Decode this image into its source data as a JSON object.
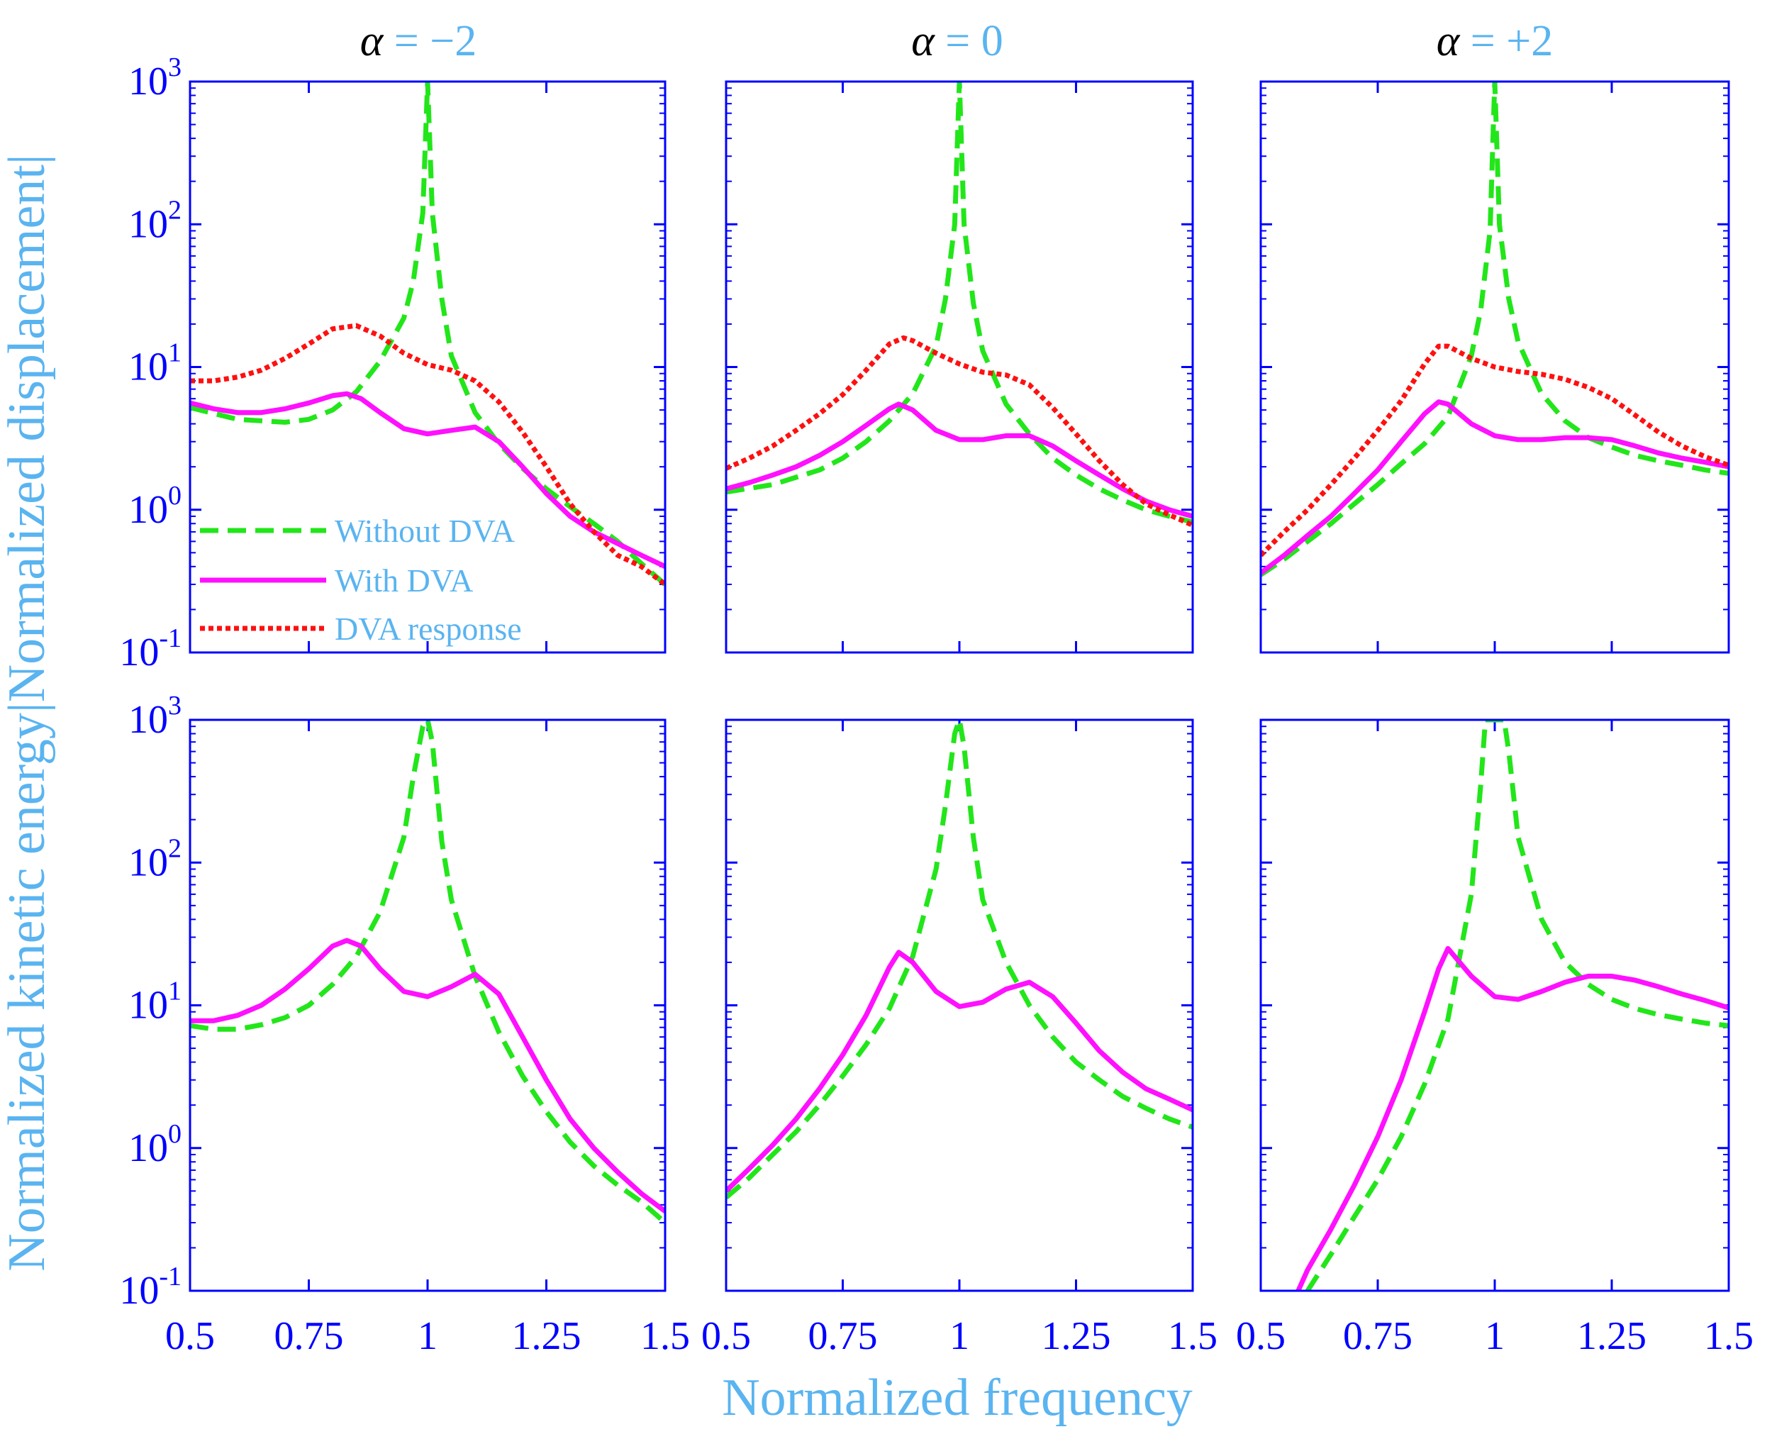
{
  "colors": {
    "axis": "#0000ff",
    "label": "#5ab4f0",
    "title_symbol": "#000000",
    "without_dva": "#22e61a",
    "with_dva": "#ff10ff",
    "dva_response": "#ff1010"
  },
  "figure": {
    "ylabel": "Normalized kinetic energy|Normalized displacement|",
    "xlabel": "Normalized frequency",
    "titles": [
      {
        "symbol": "α",
        "eq": " = −2"
      },
      {
        "symbol": "α",
        "eq": " = 0"
      },
      {
        "symbol": "α",
        "eq": " = +2"
      }
    ],
    "legend": [
      "Without DVA",
      "With DVA",
      "DVA response"
    ],
    "xticks": [
      "0.5",
      "0.75",
      "1",
      "1.25",
      "1.5"
    ],
    "yticks": [
      {
        "base": "10",
        "exp": "-1"
      },
      {
        "base": "10",
        "exp": "0"
      },
      {
        "base": "10",
        "exp": "1"
      },
      {
        "base": "10",
        "exp": "2"
      },
      {
        "base": "10",
        "exp": "3"
      }
    ]
  },
  "chart_data": [
    {
      "type": "line",
      "title": "α = −2",
      "yscale": "log",
      "xlim": [
        0.5,
        1.5
      ],
      "ylim": [
        0.1,
        1000
      ],
      "series": [
        {
          "name": "Without DVA",
          "style": "dashed",
          "x": [
            0.5,
            0.6,
            0.7,
            0.75,
            0.8,
            0.85,
            0.9,
            0.95,
            0.97,
            0.99,
            1.0,
            1.01,
            1.03,
            1.05,
            1.1,
            1.15,
            1.2,
            1.25,
            1.3,
            1.35,
            1.4,
            1.45,
            1.5
          ],
          "y": [
            5.2,
            4.3,
            4.1,
            4.3,
            5.0,
            6.7,
            11,
            22,
            40,
            120,
            1000,
            120,
            30,
            12,
            4.8,
            2.9,
            1.95,
            1.4,
            1.05,
            0.8,
            0.6,
            0.42,
            0.3
          ]
        },
        {
          "name": "With DVA",
          "style": "solid",
          "x": [
            0.5,
            0.55,
            0.6,
            0.65,
            0.7,
            0.75,
            0.8,
            0.83,
            0.86,
            0.9,
            0.95,
            1.0,
            1.05,
            1.1,
            1.15,
            1.2,
            1.25,
            1.3,
            1.35,
            1.4,
            1.45,
            1.5
          ],
          "y": [
            5.6,
            5.1,
            4.8,
            4.8,
            5.1,
            5.6,
            6.3,
            6.5,
            6.0,
            4.8,
            3.7,
            3.4,
            3.6,
            3.8,
            3.0,
            2.0,
            1.3,
            0.9,
            0.7,
            0.58,
            0.48,
            0.4
          ]
        },
        {
          "name": "DVA response",
          "style": "dotted",
          "x": [
            0.5,
            0.55,
            0.6,
            0.65,
            0.7,
            0.75,
            0.8,
            0.85,
            0.9,
            0.95,
            1.0,
            1.05,
            1.1,
            1.15,
            1.2,
            1.25,
            1.3,
            1.35,
            1.4,
            1.45,
            1.5
          ],
          "y": [
            8.0,
            8.0,
            8.5,
            9.5,
            11.5,
            14.5,
            18.5,
            19.5,
            16.5,
            12.5,
            10.4,
            9.5,
            8.0,
            5.7,
            3.5,
            2.0,
            1.1,
            0.7,
            0.48,
            0.4,
            0.3
          ]
        }
      ]
    },
    {
      "type": "line",
      "title": "α = 0",
      "yscale": "log",
      "xlim": [
        0.5,
        1.5
      ],
      "ylim": [
        0.1,
        1000
      ],
      "series": [
        {
          "name": "Without DVA",
          "style": "dashed",
          "x": [
            0.5,
            0.6,
            0.7,
            0.75,
            0.8,
            0.85,
            0.9,
            0.95,
            0.97,
            0.99,
            1.0,
            1.01,
            1.03,
            1.05,
            1.1,
            1.15,
            1.2,
            1.25,
            1.3,
            1.35,
            1.4,
            1.45,
            1.5
          ],
          "y": [
            1.33,
            1.5,
            1.9,
            2.3,
            3.0,
            4.2,
            6.5,
            14,
            30,
            100,
            1000,
            100,
            28,
            13,
            5.5,
            3.4,
            2.3,
            1.75,
            1.4,
            1.17,
            1.0,
            0.9,
            0.82
          ]
        },
        {
          "name": "With DVA",
          "style": "solid",
          "x": [
            0.5,
            0.55,
            0.6,
            0.65,
            0.7,
            0.75,
            0.8,
            0.85,
            0.87,
            0.9,
            0.95,
            1.0,
            1.05,
            1.1,
            1.15,
            1.2,
            1.25,
            1.3,
            1.35,
            1.4,
            1.45,
            1.5
          ],
          "y": [
            1.4,
            1.55,
            1.75,
            2.0,
            2.4,
            3.0,
            3.9,
            5.1,
            5.5,
            5.0,
            3.6,
            3.1,
            3.1,
            3.3,
            3.3,
            2.8,
            2.2,
            1.75,
            1.4,
            1.15,
            1.0,
            0.9
          ]
        },
        {
          "name": "DVA response",
          "style": "dotted",
          "x": [
            0.5,
            0.55,
            0.6,
            0.65,
            0.7,
            0.75,
            0.8,
            0.85,
            0.88,
            0.9,
            0.95,
            1.0,
            1.05,
            1.1,
            1.15,
            1.2,
            1.25,
            1.3,
            1.35,
            1.4,
            1.45,
            1.5
          ],
          "y": [
            1.95,
            2.3,
            2.8,
            3.6,
            4.7,
            6.4,
            9.5,
            14.5,
            16.0,
            15.3,
            12.5,
            10.5,
            9.2,
            8.8,
            7.5,
            5.2,
            3.4,
            2.2,
            1.5,
            1.1,
            0.92,
            0.78
          ]
        }
      ]
    },
    {
      "type": "line",
      "title": "α = +2",
      "yscale": "log",
      "xlim": [
        0.5,
        1.5
      ],
      "ylim": [
        0.1,
        1000
      ],
      "series": [
        {
          "name": "Without DVA",
          "style": "dashed",
          "x": [
            0.5,
            0.55,
            0.6,
            0.65,
            0.7,
            0.75,
            0.8,
            0.85,
            0.9,
            0.95,
            0.97,
            0.99,
            1.0,
            1.01,
            1.03,
            1.05,
            1.1,
            1.15,
            1.2,
            1.25,
            1.3,
            1.35,
            1.4,
            1.45,
            1.5
          ],
          "y": [
            0.35,
            0.45,
            0.6,
            0.8,
            1.1,
            1.5,
            2.1,
            2.9,
            4.5,
            12,
            25,
            90,
            1000,
            100,
            30,
            15,
            6.5,
            4.2,
            3.2,
            2.75,
            2.4,
            2.2,
            2.05,
            1.9,
            1.8
          ]
        },
        {
          "name": "With DVA",
          "style": "solid",
          "x": [
            0.5,
            0.55,
            0.6,
            0.65,
            0.7,
            0.75,
            0.8,
            0.85,
            0.88,
            0.9,
            0.95,
            1.0,
            1.05,
            1.1,
            1.15,
            1.2,
            1.25,
            1.3,
            1.35,
            1.4,
            1.45,
            1.5
          ],
          "y": [
            0.36,
            0.48,
            0.66,
            0.9,
            1.3,
            1.9,
            3.0,
            4.7,
            5.7,
            5.5,
            4.0,
            3.3,
            3.1,
            3.1,
            3.2,
            3.2,
            3.1,
            2.8,
            2.5,
            2.3,
            2.15,
            2.0
          ]
        },
        {
          "name": "DVA response",
          "style": "dotted",
          "x": [
            0.5,
            0.55,
            0.6,
            0.65,
            0.7,
            0.75,
            0.8,
            0.85,
            0.88,
            0.9,
            0.95,
            1.0,
            1.05,
            1.1,
            1.15,
            1.2,
            1.25,
            1.3,
            1.35,
            1.4,
            1.45,
            1.5
          ],
          "y": [
            0.48,
            0.7,
            1.0,
            1.5,
            2.3,
            3.6,
            5.8,
            10.5,
            14.0,
            14.0,
            11.5,
            10.0,
            9.3,
            8.9,
            8.2,
            7.2,
            6.0,
            4.6,
            3.5,
            2.8,
            2.35,
            2.05
          ]
        }
      ]
    },
    {
      "type": "line",
      "title": "",
      "yscale": "log",
      "xlim": [
        0.5,
        1.5
      ],
      "ylim": [
        0.1,
        1000
      ],
      "series": [
        {
          "name": "Without DVA",
          "style": "dashed",
          "x": [
            0.5,
            0.55,
            0.6,
            0.65,
            0.7,
            0.75,
            0.8,
            0.85,
            0.9,
            0.95,
            0.97,
            0.99,
            1.0,
            1.01,
            1.03,
            1.05,
            1.1,
            1.15,
            1.2,
            1.25,
            1.3,
            1.35,
            1.4,
            1.45,
            1.5
          ],
          "y": [
            7.2,
            6.8,
            6.8,
            7.3,
            8.2,
            10,
            14,
            22,
            45,
            150,
            400,
            900,
            1000,
            700,
            140,
            55,
            16,
            6.5,
            3.2,
            1.8,
            1.1,
            0.75,
            0.55,
            0.42,
            0.3
          ]
        },
        {
          "name": "With DVA",
          "style": "solid",
          "x": [
            0.5,
            0.55,
            0.6,
            0.65,
            0.7,
            0.75,
            0.8,
            0.83,
            0.86,
            0.9,
            0.95,
            1.0,
            1.05,
            1.1,
            1.15,
            1.2,
            1.25,
            1.3,
            1.35,
            1.4,
            1.45,
            1.5
          ],
          "y": [
            7.8,
            7.8,
            8.5,
            10,
            13,
            18,
            26,
            28.5,
            26,
            18,
            12.5,
            11.5,
            13.5,
            16.5,
            12,
            6.0,
            3.0,
            1.6,
            1.0,
            0.68,
            0.48,
            0.36
          ]
        }
      ]
    },
    {
      "type": "line",
      "title": "",
      "yscale": "log",
      "xlim": [
        0.5,
        1.5
      ],
      "ylim": [
        0.1,
        1000
      ],
      "series": [
        {
          "name": "Without DVA",
          "style": "dashed",
          "x": [
            0.5,
            0.55,
            0.6,
            0.65,
            0.7,
            0.75,
            0.8,
            0.85,
            0.9,
            0.95,
            0.97,
            0.99,
            1.0,
            1.01,
            1.03,
            1.05,
            1.1,
            1.15,
            1.2,
            1.25,
            1.3,
            1.35,
            1.4,
            1.45,
            1.5
          ],
          "y": [
            0.45,
            0.62,
            0.9,
            1.3,
            2.0,
            3.2,
            5.3,
            9.5,
            22,
            90,
            250,
            800,
            1000,
            650,
            150,
            55,
            20,
            10,
            6.0,
            4.0,
            3.0,
            2.3,
            1.9,
            1.6,
            1.4
          ]
        },
        {
          "name": "With DVA",
          "style": "solid",
          "x": [
            0.5,
            0.55,
            0.6,
            0.65,
            0.7,
            0.75,
            0.8,
            0.85,
            0.87,
            0.9,
            0.95,
            1.0,
            1.05,
            1.1,
            1.15,
            1.2,
            1.25,
            1.3,
            1.35,
            1.4,
            1.45,
            1.5
          ],
          "y": [
            0.5,
            0.72,
            1.05,
            1.6,
            2.6,
            4.5,
            8.5,
            18.5,
            23.5,
            20,
            12.5,
            9.8,
            10.5,
            13,
            14.5,
            11.5,
            7.5,
            4.8,
            3.4,
            2.6,
            2.2,
            1.85
          ]
        }
      ]
    },
    {
      "type": "line",
      "title": "",
      "yscale": "log",
      "xlim": [
        0.5,
        1.5
      ],
      "ylim": [
        0.1,
        1000
      ],
      "series": [
        {
          "name": "Without DVA",
          "style": "dashed",
          "x": [
            0.6,
            0.65,
            0.7,
            0.75,
            0.8,
            0.85,
            0.9,
            0.95,
            0.97,
            0.98,
            1.0,
            1.02,
            1.03,
            1.05,
            1.1,
            1.15,
            1.2,
            1.25,
            1.3,
            1.35,
            1.4,
            1.45,
            1.5
          ],
          "y": [
            0.1,
            0.18,
            0.33,
            0.6,
            1.2,
            2.8,
            8,
            60,
            350,
            1000,
            1000,
            1000,
            600,
            150,
            40,
            20,
            14,
            11,
            9.5,
            8.6,
            8.0,
            7.5,
            7.2
          ]
        },
        {
          "name": "With DVA",
          "style": "solid",
          "x": [
            0.58,
            0.6,
            0.65,
            0.7,
            0.75,
            0.8,
            0.85,
            0.88,
            0.9,
            0.95,
            1.0,
            1.05,
            1.1,
            1.15,
            1.2,
            1.25,
            1.3,
            1.35,
            1.4,
            1.45,
            1.5
          ],
          "y": [
            0.1,
            0.14,
            0.27,
            0.55,
            1.2,
            3.0,
            9,
            18,
            25,
            16,
            11.5,
            11,
            12.5,
            14.5,
            16,
            16,
            15,
            13.5,
            12,
            10.8,
            9.6
          ]
        }
      ]
    }
  ]
}
